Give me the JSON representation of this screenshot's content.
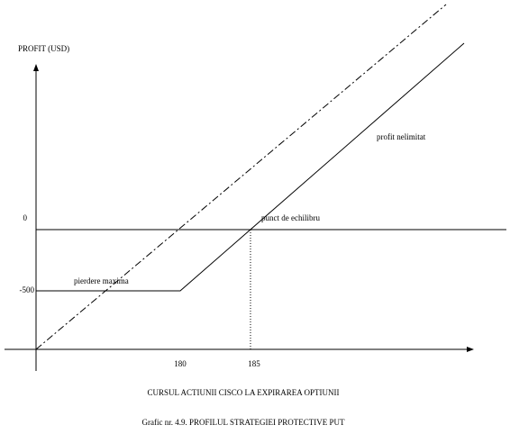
{
  "axis_label_y": "PROFIT (USD)",
  "y_tick_labels": [
    "0",
    "-500"
  ],
  "x_tick_labels": [
    "180",
    "185"
  ],
  "annotations": {
    "max_loss": "pierdere maxima",
    "break_even": "punct de echilibru",
    "profit": "profit nelimitat"
  },
  "axis_label_x": "CURSUL ACTIUNII CISCO LA EXPIRAREA OPTIUNII",
  "caption": "Grafic nr. 4.9. PROFILUL STRATEGIEI PROTECTIVE PUT"
}
